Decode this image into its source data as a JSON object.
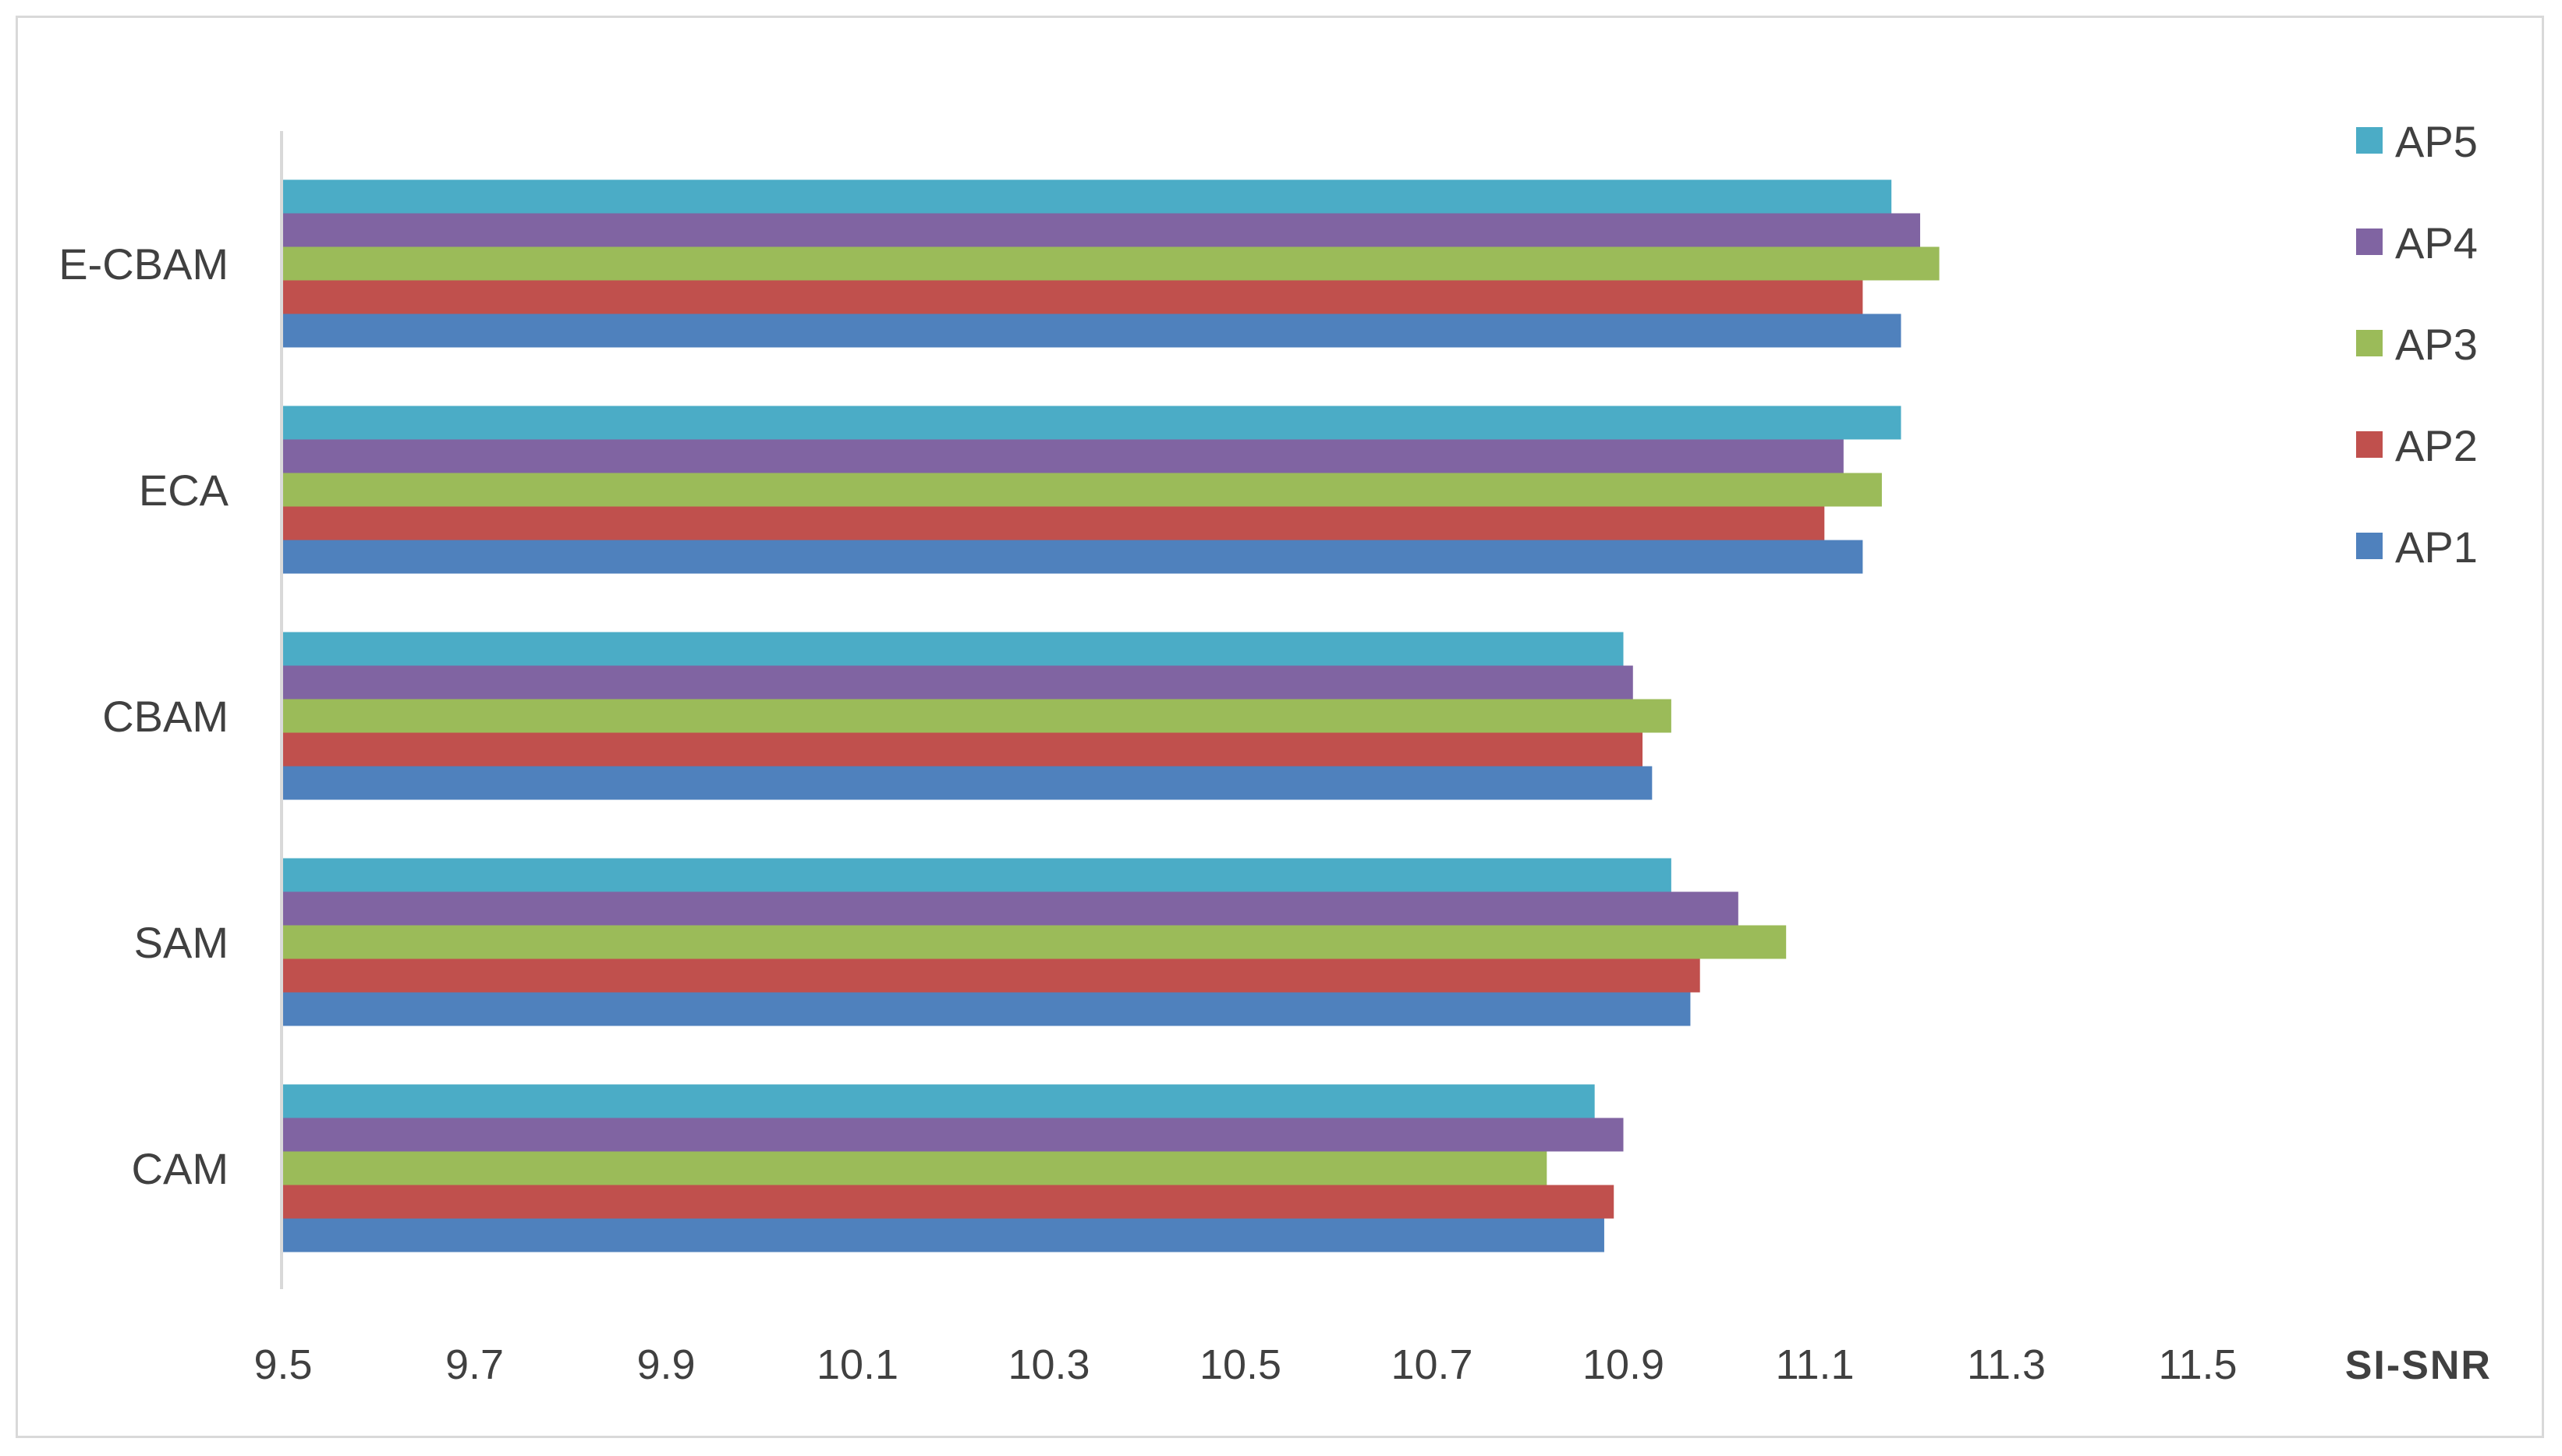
{
  "chart_data": {
    "type": "bar",
    "orientation": "horizontal",
    "title": "",
    "xlabel": "SI-SNR",
    "ylabel": "",
    "xlim": [
      9.5,
      11.5
    ],
    "x_ticks": [
      "9.5",
      "9.7",
      "9.9",
      "10.1",
      "10.3",
      "10.5",
      "10.7",
      "10.9",
      "11.1",
      "11.3",
      "11.5"
    ],
    "categories": [
      "E-CBAM",
      "ECA",
      "CBAM",
      "SAM",
      "CAM"
    ],
    "series": [
      {
        "name": "AP5",
        "color": "#4bacc6",
        "values": [
          11.18,
          11.19,
          10.9,
          10.95,
          10.87
        ]
      },
      {
        "name": "AP4",
        "color": "#8064a2",
        "values": [
          11.21,
          11.13,
          10.91,
          11.02,
          10.9
        ]
      },
      {
        "name": "AP3",
        "color": "#9bbb59",
        "values": [
          11.23,
          11.17,
          10.95,
          11.07,
          10.82
        ]
      },
      {
        "name": "AP2",
        "color": "#c0504d",
        "values": [
          11.15,
          11.11,
          10.92,
          10.98,
          10.89
        ]
      },
      {
        "name": "AP1",
        "color": "#4f81bd",
        "values": [
          11.19,
          11.15,
          10.93,
          10.97,
          10.88
        ]
      }
    ],
    "grid": false,
    "legend_position": "right"
  }
}
